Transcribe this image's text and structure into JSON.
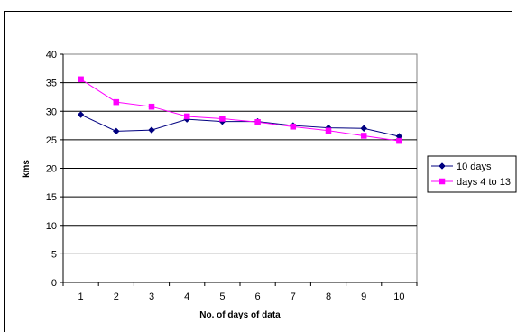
{
  "chart_data": {
    "type": "line",
    "title": "",
    "xlabel": "No. of days of data",
    "ylabel": "kms",
    "categories": [
      "1",
      "2",
      "3",
      "4",
      "5",
      "6",
      "7",
      "8",
      "9",
      "10"
    ],
    "ylim": [
      0,
      40
    ],
    "yticks": [
      "0",
      "5",
      "10",
      "15",
      "20",
      "25",
      "30",
      "35",
      "40"
    ],
    "grid": "horizontal",
    "legend": "right",
    "series": [
      {
        "name": "10 days",
        "color": "#000080",
        "marker": "diamond",
        "values": [
          29.4,
          26.5,
          26.7,
          28.6,
          28.2,
          28.2,
          27.5,
          27.1,
          27.0,
          25.6
        ]
      },
      {
        "name": "days 4 to 13",
        "color": "#FF00FF",
        "marker": "square",
        "values": [
          35.6,
          31.6,
          30.8,
          29.1,
          28.7,
          28.1,
          27.3,
          26.6,
          25.7,
          24.8
        ]
      }
    ]
  }
}
